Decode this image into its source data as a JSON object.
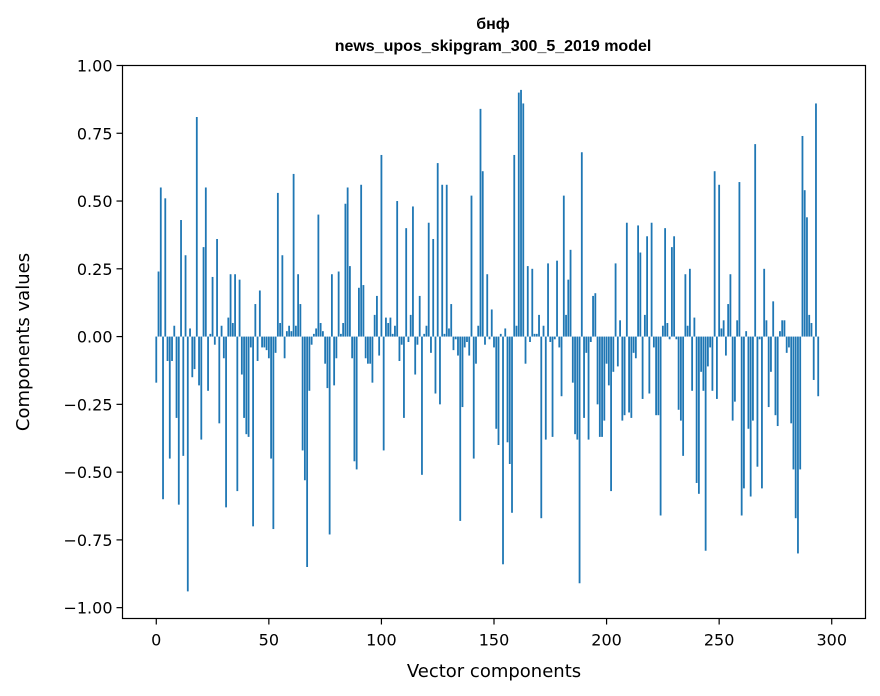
{
  "chart_data": {
    "type": "bar",
    "title_line1": "бнф",
    "title_line2": "news_upos_skipgram_300_5_2019 model",
    "xlabel": "Vector components",
    "ylabel": "Components values",
    "xlim": [
      -15,
      315
    ],
    "ylim": [
      -1.04,
      1.0
    ],
    "xticks": [
      0,
      50,
      100,
      150,
      200,
      250,
      300
    ],
    "xtick_labels": [
      "0",
      "50",
      "100",
      "150",
      "200",
      "250",
      "300"
    ],
    "yticks": [
      1.0,
      0.75,
      0.5,
      0.25,
      0.0,
      -0.25,
      -0.5,
      -0.75,
      -1.0
    ],
    "ytick_labels": [
      "1.00",
      "0.75",
      "0.50",
      "0.25",
      "0.00",
      "−0.25",
      "−0.50",
      "−0.75",
      "−1.00"
    ],
    "bar_color": "#1f77b4",
    "values": [
      -0.17,
      0.24,
      0.55,
      -0.6,
      0.51,
      -0.09,
      -0.45,
      -0.09,
      0.04,
      -0.3,
      -0.62,
      0.43,
      -0.44,
      0.3,
      -0.94,
      0.03,
      -0.15,
      -0.12,
      0.81,
      -0.18,
      -0.38,
      0.33,
      0.55,
      -0.2,
      0.01,
      0.22,
      -0.03,
      0.36,
      -0.32,
      0.04,
      -0.08,
      -0.63,
      0.07,
      0.23,
      0.05,
      0.23,
      -0.57,
      0.21,
      -0.14,
      -0.3,
      -0.36,
      -0.37,
      -0.04,
      -0.7,
      0.12,
      -0.09,
      0.17,
      -0.04,
      -0.04,
      -0.05,
      -0.08,
      -0.45,
      -0.71,
      -0.06,
      0.53,
      0.05,
      0.3,
      -0.08,
      0.02,
      0.04,
      0.02,
      0.6,
      0.04,
      0.23,
      0.12,
      -0.42,
      -0.53,
      -0.85,
      -0.2,
      -0.03,
      0.01,
      0.03,
      0.45,
      0.05,
      0.02,
      -0.1,
      -0.19,
      -0.73,
      0.23,
      -0.18,
      -0.08,
      0.24,
      0.01,
      0.05,
      0.49,
      0.55,
      0.26,
      -0.08,
      -0.46,
      -0.49,
      0.18,
      0.56,
      0.19,
      -0.08,
      -0.1,
      -0.1,
      -0.17,
      0.08,
      0.15,
      -0.07,
      0.67,
      -0.42,
      0.07,
      0.05,
      0.07,
      0.01,
      0.04,
      0.5,
      -0.09,
      -0.03,
      -0.3,
      0.4,
      -0.02,
      0.08,
      0.48,
      -0.14,
      -0.03,
      0.15,
      -0.51,
      0.01,
      0.04,
      0.42,
      -0.06,
      0.36,
      -0.21,
      0.64,
      -0.25,
      0.56,
      0.01,
      0.56,
      0.03,
      0.12,
      -0.05,
      -0.01,
      -0.07,
      -0.68,
      -0.26,
      -0.04,
      -0.02,
      -0.07,
      0.52,
      -0.45,
      -0.1,
      0.04,
      0.84,
      0.61,
      -0.03,
      0.23,
      -0.01,
      0.1,
      -0.04,
      -0.34,
      -0.4,
      0.01,
      -0.84,
      0.03,
      -0.39,
      -0.47,
      -0.65,
      0.67,
      0.04,
      0.9,
      0.91,
      0.86,
      -0.1,
      0.26,
      -0.02,
      0.25,
      0.01,
      0.01,
      0.08,
      -0.67,
      0.04,
      -0.38,
      0.27,
      -0.02,
      -0.37,
      -0.01,
      0.28,
      -0.04,
      -0.22,
      0.52,
      0.08,
      0.21,
      0.32,
      -0.17,
      -0.36,
      -0.38,
      -0.91,
      0.68,
      -0.3,
      -0.06,
      -0.38,
      -0.02,
      0.15,
      0.16,
      -0.25,
      -0.37,
      -0.37,
      -0.31,
      -0.1,
      -0.18,
      -0.57,
      -0.13,
      0.27,
      -0.11,
      0.06,
      -0.31,
      -0.29,
      0.42,
      -0.28,
      -0.3,
      -0.06,
      -0.08,
      0.41,
      0.31,
      -0.23,
      0.08,
      0.37,
      -0.21,
      0.42,
      -0.04,
      -0.29,
      -0.29,
      -0.66,
      0.04,
      0.4,
      0.05,
      -0.01,
      0.33,
      0.37,
      -0.01,
      -0.27,
      -0.31,
      -0.44,
      0.23,
      0.04,
      0.25,
      -0.2,
      0.07,
      -0.54,
      -0.58,
      -0.13,
      -0.2,
      -0.79,
      -0.11,
      -0.04,
      -0.2,
      0.61,
      -0.23,
      0.56,
      0.03,
      0.06,
      -0.07,
      0.12,
      0.23,
      -0.31,
      -0.24,
      0.06,
      0.57,
      -0.66,
      -0.56,
      0.02,
      -0.34,
      -0.59,
      -0.31,
      0.71,
      -0.48,
      -0.01,
      -0.56,
      0.25,
      0.06,
      -0.26,
      -0.13,
      0.13,
      -0.29,
      -0.33,
      0.02,
      0.06,
      0.06,
      -0.06,
      -0.04,
      -0.32,
      -0.49,
      -0.67,
      -0.8,
      -0.49,
      0.74,
      0.54,
      0.44,
      0.08,
      0.05,
      -0.16,
      0.86,
      -0.22
    ]
  }
}
